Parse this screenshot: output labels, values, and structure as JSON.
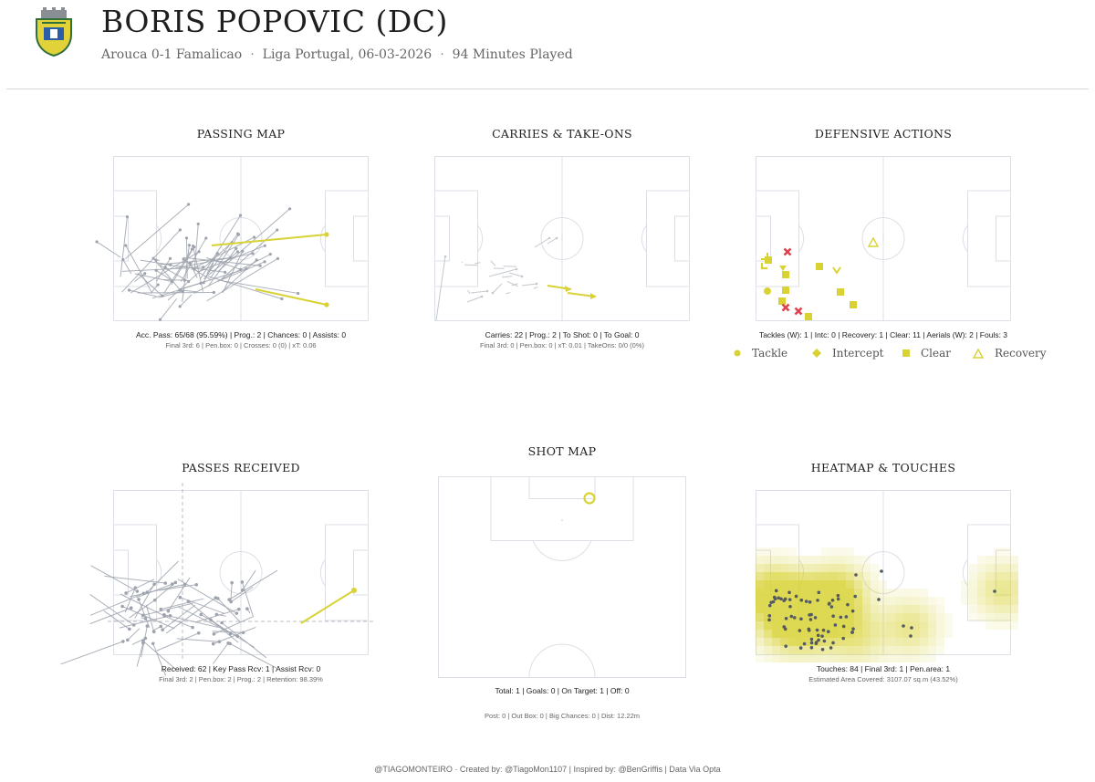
{
  "header": {
    "player_name": "BORIS POPOVIC (DC)",
    "match": "Arouca 0-1 Famalicao",
    "competition_date": "Liga Portugal, 06-03-2026",
    "minutes": "94 Minutes Played",
    "separator": "·"
  },
  "colors": {
    "accent": "#d8d235",
    "neutral_line": "#9ea4ae",
    "pitch_line": "#dcdfe5",
    "negative": "#e0434d",
    "heat_low": "#f4f1c8",
    "heat_high": "#d8d235"
  },
  "panels": {
    "passing": {
      "title": "PASSING MAP",
      "stat_main": "Acc. Pass: 65/68 (95.59%) | Prog.: 2 | Chances: 0 | Assists: 0",
      "stat_sub": "Final 3rd: 6 | Pen.box: 0 | Crosses: 0 (0) | xT: 0.06"
    },
    "carries": {
      "title": "CARRIES & TAKE-ONS",
      "stat_main": "Carries: 22 | Prog.: 2 | To Shot: 0 | To Goal: 0",
      "stat_sub": "Final 3rd: 0 | Pen.box: 0 | xT: 0.01 | TakeOns: 0/0 (0%)"
    },
    "defensive": {
      "title": "DEFENSIVE ACTIONS",
      "stat_main": "Tackles (W): 1 | Intc: 0 | Recovery: 1 | Clear: 11 | Aerials (W): 2 | Fouls: 3",
      "legend": [
        {
          "icon": "circle-icon",
          "label": "Tackle"
        },
        {
          "icon": "diamond-icon",
          "label": "Intercept"
        },
        {
          "icon": "square-icon",
          "label": "Clear"
        },
        {
          "icon": "triangle-icon",
          "label": "Recovery"
        }
      ]
    },
    "received": {
      "title": "PASSES RECEIVED",
      "stat_main": "Received: 62 | Key Pass Rcv: 1 | Assist Rcv: 0",
      "stat_sub": "Final 3rd: 2 | Pen.box: 2 | Prog.: 2 | Retention: 98.39%"
    },
    "shots": {
      "title": "SHOT MAP",
      "stat_main": "Total: 1 | Goals: 0 | On Target: 1 | Off: 0",
      "stat_sub": "Post: 0 | Out Box: 0 | Big Chances: 0 | Dist: 12.22m"
    },
    "heatmap": {
      "title": "HEATMAP & TOUCHES",
      "stat_main": "Touches: 84 | Final 3rd: 1 | Pen.area: 1",
      "stat_sub": "Estimated Area Covered: 3107.07 sq.m (43.52%)"
    }
  },
  "footer": {
    "text": "@TIAGOMONTEIRO  ·  Created by: @TiagoMon1107 | Inspired by: @BenGriffis | Data Via Opta"
  }
}
